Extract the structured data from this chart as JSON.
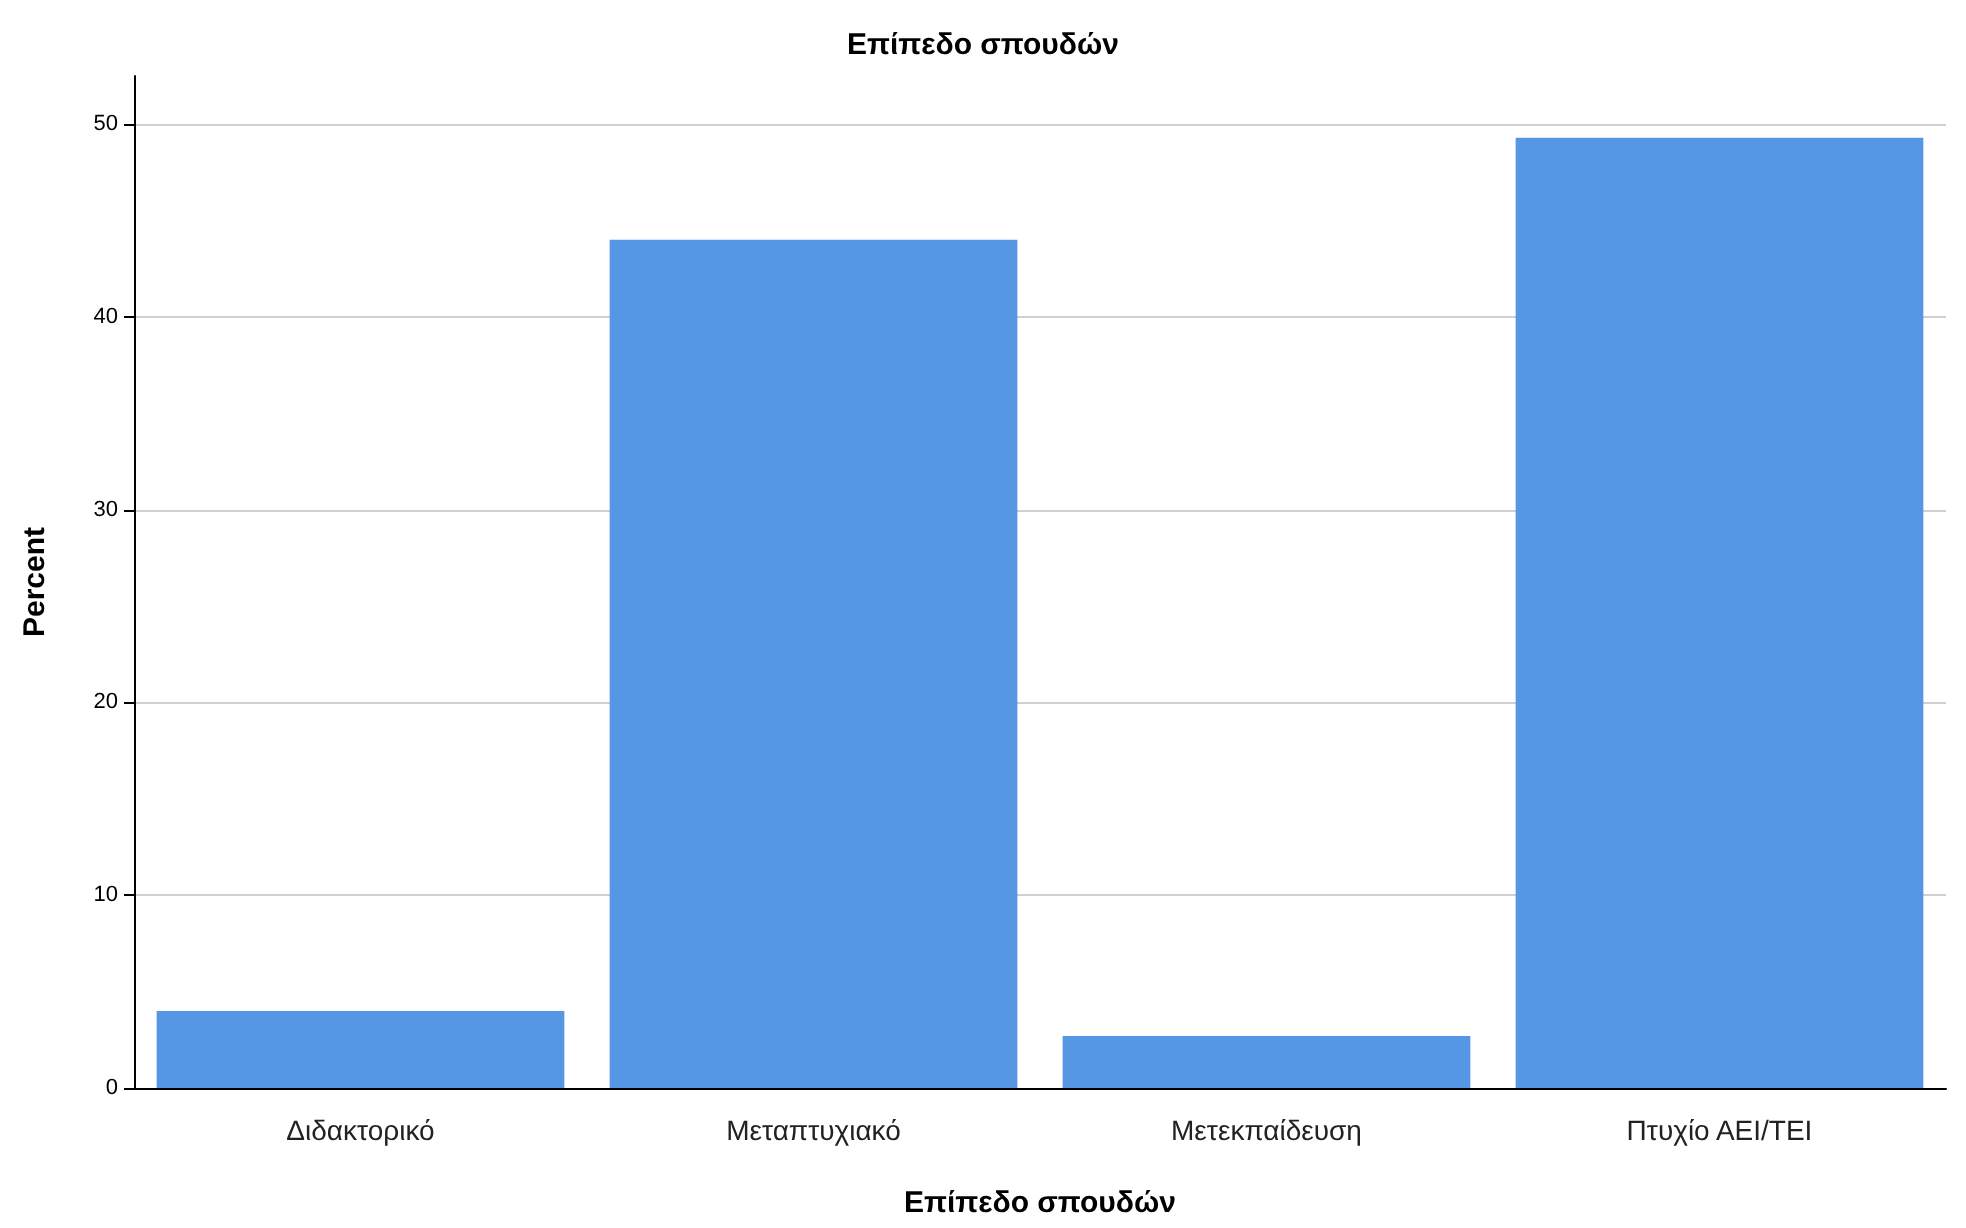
{
  "chart_data": {
    "type": "bar",
    "title": "Επίπεδο σπουδών",
    "xlabel": "Επίπεδο σπουδών",
    "ylabel": "Percent",
    "categories": [
      "Διδακτορικό",
      "Μεταπτυχιακό",
      "Μετεκπαίδευση",
      "Πτυχίο ΑΕΙ/ΤΕΙ"
    ],
    "values": [
      4.0,
      44.0,
      2.7,
      49.3
    ],
    "color": "#5597e5",
    "ylim": [
      0,
      52.5
    ],
    "yticks": [
      0,
      10,
      20,
      30,
      40,
      50
    ],
    "grid": "y"
  }
}
